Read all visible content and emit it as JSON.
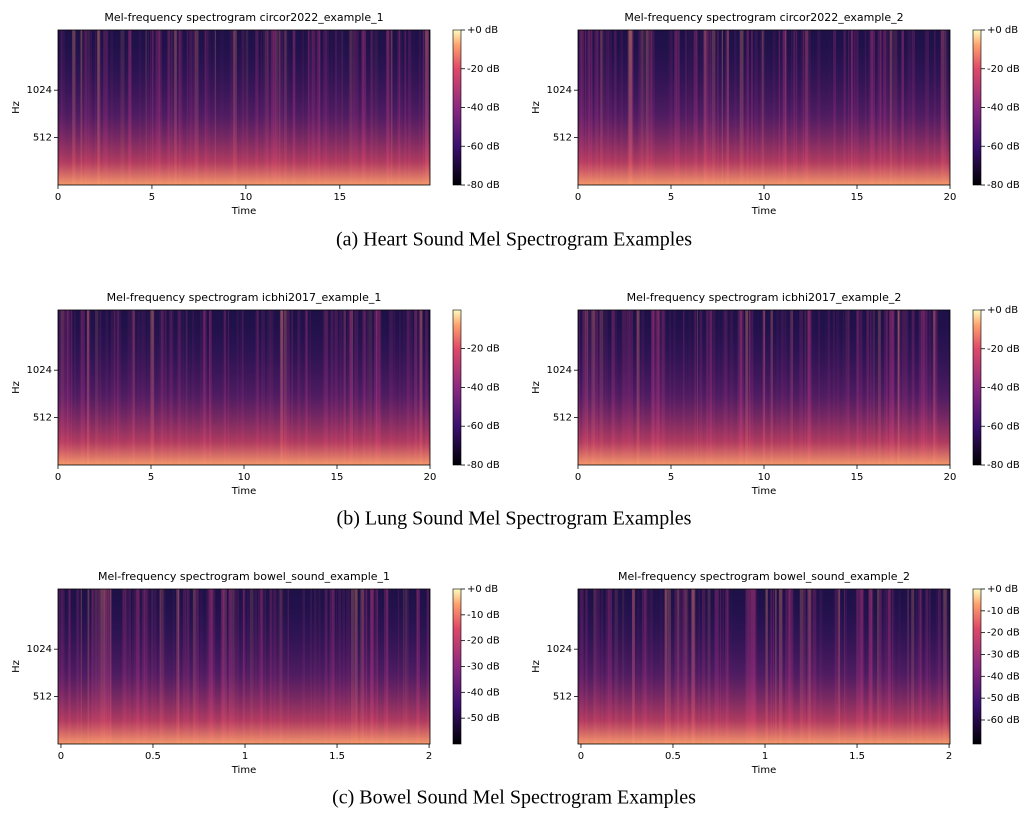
{
  "chart_data": [
    {
      "type": "spectrogram",
      "title": "Mel-frequency spectrogram circor2022_example_1",
      "xlabel": "Time",
      "ylabel": "Hz",
      "yscale": "mel",
      "xlim": [
        0,
        19.8
      ],
      "xticks": [
        0,
        5,
        10,
        15
      ],
      "ylim": [
        0,
        2000
      ],
      "yticks": [
        512,
        1024
      ],
      "clim": [
        -80,
        0
      ],
      "cticks": [
        {
          "value": 0,
          "label": "+0 dB"
        },
        {
          "value": -20,
          "label": "-20 dB"
        },
        {
          "value": -40,
          "label": "-40 dB"
        },
        {
          "value": -60,
          "label": "-60 dB"
        },
        {
          "value": -80,
          "label": "-80 dB"
        }
      ]
    },
    {
      "type": "spectrogram",
      "title": "Mel-frequency spectrogram circor2022_example_2",
      "xlabel": "Time",
      "ylabel": "Hz",
      "yscale": "mel",
      "xlim": [
        0,
        20
      ],
      "xticks": [
        0,
        5,
        10,
        15,
        20
      ],
      "ylim": [
        0,
        2000
      ],
      "yticks": [
        512,
        1024
      ],
      "clim": [
        -80,
        0
      ],
      "cticks": [
        {
          "value": 0,
          "label": "+0 dB"
        },
        {
          "value": -20,
          "label": "-20 dB"
        },
        {
          "value": -40,
          "label": "-40 dB"
        },
        {
          "value": -60,
          "label": "-60 dB"
        },
        {
          "value": -80,
          "label": "-80 dB"
        }
      ]
    },
    {
      "type": "spectrogram",
      "title": "Mel-frequency spectrogram icbhi2017_example_1",
      "xlabel": "Time",
      "ylabel": "Hz",
      "yscale": "mel",
      "xlim": [
        0,
        20
      ],
      "xticks": [
        0,
        5,
        10,
        15,
        20
      ],
      "ylim": [
        0,
        2000
      ],
      "yticks": [
        512,
        1024
      ],
      "clim": [
        -80,
        -0.1
      ],
      "cticks": [
        {
          "value": -20,
          "label": "-20 dB"
        },
        {
          "value": -40,
          "label": "-40 dB"
        },
        {
          "value": -60,
          "label": "-60 dB"
        },
        {
          "value": -80,
          "label": "-80 dB"
        }
      ]
    },
    {
      "type": "spectrogram",
      "title": "Mel-frequency spectrogram icbhi2017_example_2",
      "xlabel": "Time",
      "ylabel": "Hz",
      "yscale": "mel",
      "xlim": [
        0,
        20
      ],
      "xticks": [
        0,
        5,
        10,
        15,
        20
      ],
      "ylim": [
        0,
        2000
      ],
      "yticks": [
        512,
        1024
      ],
      "clim": [
        -80,
        0
      ],
      "cticks": [
        {
          "value": 0,
          "label": "+0 dB"
        },
        {
          "value": -20,
          "label": "-20 dB"
        },
        {
          "value": -40,
          "label": "-40 dB"
        },
        {
          "value": -60,
          "label": "-60 dB"
        },
        {
          "value": -80,
          "label": "-80 dB"
        }
      ]
    },
    {
      "type": "spectrogram",
      "title": "Mel-frequency spectrogram bowel_sound_example_1",
      "xlabel": "Time",
      "ylabel": "Hz",
      "yscale": "mel",
      "xlim": [
        -0.016,
        2.005
      ],
      "xticks": [
        0,
        0.5,
        1,
        1.5,
        2
      ],
      "ylim": [
        0,
        2000
      ],
      "yticks": [
        512,
        1024
      ],
      "clim": [
        -60,
        0
      ],
      "cticks": [
        {
          "value": 0,
          "label": "+0 dB"
        },
        {
          "value": -10,
          "label": "-10 dB"
        },
        {
          "value": -20,
          "label": "-20 dB"
        },
        {
          "value": -30,
          "label": "-30 dB"
        },
        {
          "value": -40,
          "label": "-40 dB"
        },
        {
          "value": -50,
          "label": "-50 dB"
        }
      ]
    },
    {
      "type": "spectrogram",
      "title": "Mel-frequency spectrogram bowel_sound_example_2",
      "xlabel": "Time",
      "ylabel": "Hz",
      "yscale": "mel",
      "xlim": [
        -0.016,
        2.005
      ],
      "xticks": [
        0,
        0.5,
        1,
        1.5,
        2
      ],
      "ylim": [
        0,
        2000
      ],
      "yticks": [
        512,
        1024
      ],
      "clim": [
        -71,
        0
      ],
      "cticks": [
        {
          "value": 0,
          "label": "+0 dB"
        },
        {
          "value": -10,
          "label": "-10 dB"
        },
        {
          "value": -20,
          "label": "-20 dB"
        },
        {
          "value": -30,
          "label": "-30 dB"
        },
        {
          "value": -40,
          "label": "-40 dB"
        },
        {
          "value": -50,
          "label": "-50 dB"
        },
        {
          "value": -60,
          "label": "-60 dB"
        }
      ]
    }
  ],
  "captions": [
    "(a) Heart Sound Mel Spectrogram Examples",
    "(b) Lung Sound Mel Spectrogram Examples",
    "(c) Bowel Sound Mel Spectrogram Examples"
  ]
}
